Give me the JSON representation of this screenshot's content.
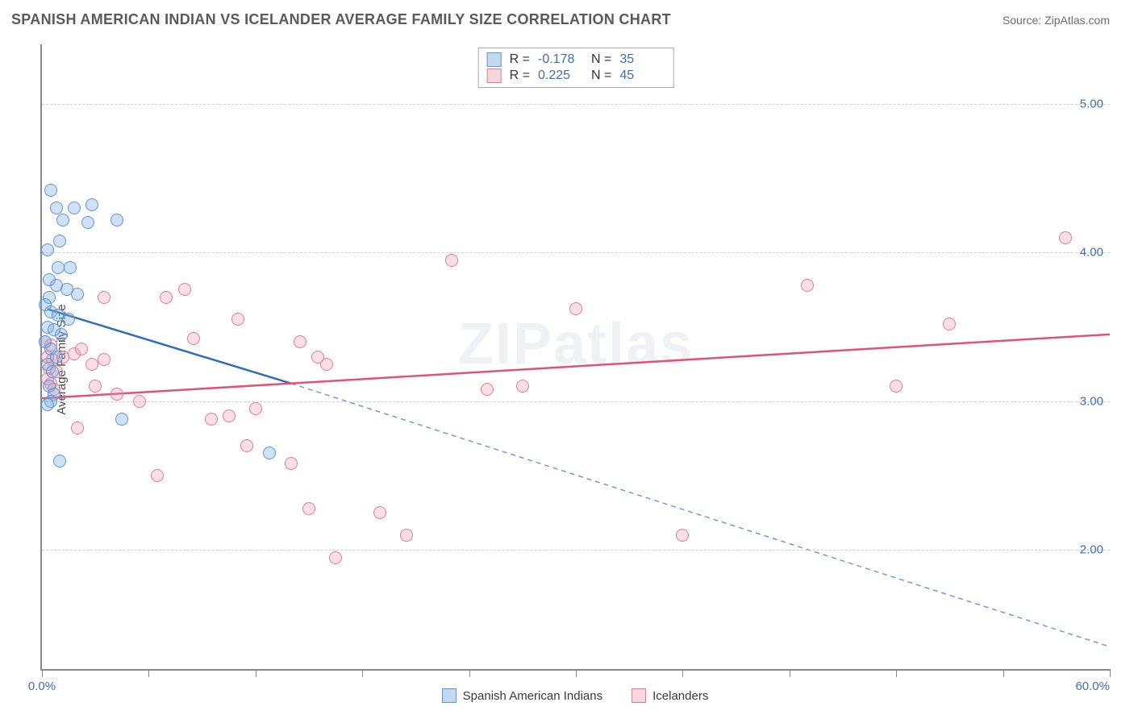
{
  "header": {
    "title": "SPANISH AMERICAN INDIAN VS ICELANDER AVERAGE FAMILY SIZE CORRELATION CHART",
    "source_prefix": "Source: ",
    "source": "ZipAtlas.com"
  },
  "chart": {
    "type": "scatter",
    "ylabel": "Average Family Size",
    "watermark": "ZIPatlas",
    "background_color": "#ffffff",
    "grid_color": "#d0d0d0",
    "axis_color": "#888888",
    "tick_label_color": "#3d6db5",
    "xlim": [
      0,
      60
    ],
    "ylim": [
      1.2,
      5.4
    ],
    "x_ticks": [
      0,
      6,
      12,
      18,
      24,
      30,
      36,
      42,
      48,
      54,
      60
    ],
    "x_tick_labels": {
      "0": "0.0%",
      "60": "60.0%"
    },
    "y_gridlines": [
      2.0,
      3.0,
      4.0,
      5.0
    ],
    "y_tick_labels": [
      "2.00",
      "3.00",
      "4.00",
      "5.00"
    ],
    "marker_size": 16,
    "series": {
      "blue": {
        "label": "Spanish American Indians",
        "fill_color": "rgba(120,170,225,0.35)",
        "stroke_color": "#5a95d6",
        "R": "-0.178",
        "N": "35",
        "trend_solid": {
          "x1": 0.3,
          "y1": 3.62,
          "x2": 14,
          "y2": 3.12
        },
        "trend_dashed": {
          "x1": 14,
          "y1": 3.12,
          "x2": 60,
          "y2": 1.35
        },
        "points": [
          {
            "x": 0.5,
            "y": 4.42
          },
          {
            "x": 0.8,
            "y": 4.3
          },
          {
            "x": 1.8,
            "y": 4.3
          },
          {
            "x": 2.8,
            "y": 4.32
          },
          {
            "x": 2.6,
            "y": 4.2
          },
          {
            "x": 1.2,
            "y": 4.22
          },
          {
            "x": 4.2,
            "y": 4.22
          },
          {
            "x": 1.0,
            "y": 4.08
          },
          {
            "x": 0.3,
            "y": 4.02
          },
          {
            "x": 0.9,
            "y": 3.9
          },
          {
            "x": 1.6,
            "y": 3.9
          },
          {
            "x": 0.4,
            "y": 3.82
          },
          {
            "x": 0.8,
            "y": 3.78
          },
          {
            "x": 1.4,
            "y": 3.75
          },
          {
            "x": 2.0,
            "y": 3.72
          },
          {
            "x": 0.2,
            "y": 3.65
          },
          {
            "x": 0.5,
            "y": 3.6
          },
          {
            "x": 0.9,
            "y": 3.58
          },
          {
            "x": 0.3,
            "y": 3.5
          },
          {
            "x": 0.7,
            "y": 3.48
          },
          {
            "x": 1.1,
            "y": 3.45
          },
          {
            "x": 0.2,
            "y": 3.4
          },
          {
            "x": 0.5,
            "y": 3.35
          },
          {
            "x": 0.8,
            "y": 3.3
          },
          {
            "x": 0.3,
            "y": 3.25
          },
          {
            "x": 0.6,
            "y": 3.2
          },
          {
            "x": 0.4,
            "y": 3.1
          },
          {
            "x": 0.7,
            "y": 3.05
          },
          {
            "x": 0.5,
            "y": 3.0
          },
          {
            "x": 0.3,
            "y": 2.98
          },
          {
            "x": 4.5,
            "y": 2.88
          },
          {
            "x": 1.0,
            "y": 2.6
          },
          {
            "x": 12.8,
            "y": 2.65
          },
          {
            "x": 0.4,
            "y": 3.7
          },
          {
            "x": 1.5,
            "y": 3.55
          }
        ]
      },
      "pink": {
        "label": "Icelanders",
        "fill_color": "rgba(240,150,170,0.3)",
        "stroke_color": "#e57a98",
        "R": "0.225",
        "N": "45",
        "trend_solid": {
          "x1": 0,
          "y1": 3.02,
          "x2": 60,
          "y2": 3.45
        },
        "points": [
          {
            "x": 0.2,
            "y": 3.4
          },
          {
            "x": 0.5,
            "y": 3.38
          },
          {
            "x": 0.3,
            "y": 3.3
          },
          {
            "x": 0.6,
            "y": 3.28
          },
          {
            "x": 0.4,
            "y": 3.22
          },
          {
            "x": 0.8,
            "y": 3.2
          },
          {
            "x": 0.3,
            "y": 3.15
          },
          {
            "x": 0.5,
            "y": 3.12
          },
          {
            "x": 0.7,
            "y": 3.08
          },
          {
            "x": 1.2,
            "y": 3.3
          },
          {
            "x": 1.8,
            "y": 3.32
          },
          {
            "x": 2.2,
            "y": 3.35
          },
          {
            "x": 3.5,
            "y": 3.28
          },
          {
            "x": 2.8,
            "y": 3.25
          },
          {
            "x": 4.2,
            "y": 3.05
          },
          {
            "x": 5.5,
            "y": 3.0
          },
          {
            "x": 7.0,
            "y": 3.7
          },
          {
            "x": 8.0,
            "y": 3.75
          },
          {
            "x": 8.5,
            "y": 3.42
          },
          {
            "x": 9.5,
            "y": 2.88
          },
          {
            "x": 10.5,
            "y": 2.9
          },
          {
            "x": 11.5,
            "y": 2.7
          },
          {
            "x": 2.0,
            "y": 2.82
          },
          {
            "x": 6.5,
            "y": 2.5
          },
          {
            "x": 14.5,
            "y": 3.4
          },
          {
            "x": 15.5,
            "y": 3.3
          },
          {
            "x": 16.0,
            "y": 3.25
          },
          {
            "x": 11.0,
            "y": 3.55
          },
          {
            "x": 3.5,
            "y": 3.7
          },
          {
            "x": 12.0,
            "y": 2.95
          },
          {
            "x": 14.0,
            "y": 2.58
          },
          {
            "x": 15.0,
            "y": 2.28
          },
          {
            "x": 16.5,
            "y": 1.95
          },
          {
            "x": 19.0,
            "y": 2.25
          },
          {
            "x": 20.5,
            "y": 2.1
          },
          {
            "x": 23.0,
            "y": 3.95
          },
          {
            "x": 25.0,
            "y": 3.08
          },
          {
            "x": 27.0,
            "y": 3.1
          },
          {
            "x": 30.0,
            "y": 3.62
          },
          {
            "x": 36.0,
            "y": 2.1
          },
          {
            "x": 43.0,
            "y": 3.78
          },
          {
            "x": 48.0,
            "y": 3.1
          },
          {
            "x": 51.0,
            "y": 3.52
          },
          {
            "x": 57.5,
            "y": 4.1
          },
          {
            "x": 3.0,
            "y": 3.1
          }
        ]
      }
    }
  },
  "legend": {
    "stat_r_label": "R =",
    "stat_n_label": "N ="
  }
}
